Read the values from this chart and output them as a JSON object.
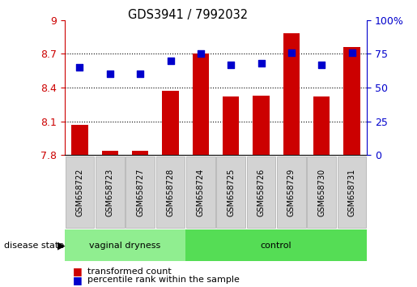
{
  "title": "GDS3941 / 7992032",
  "samples": [
    "GSM658722",
    "GSM658723",
    "GSM658727",
    "GSM658728",
    "GSM658724",
    "GSM658725",
    "GSM658726",
    "GSM658729",
    "GSM658730",
    "GSM658731"
  ],
  "bar_values": [
    8.07,
    7.84,
    7.84,
    8.37,
    8.7,
    8.32,
    8.33,
    8.88,
    8.32,
    8.76
  ],
  "percentile_values": [
    65,
    60,
    60,
    70,
    75,
    67,
    68,
    76,
    67,
    76
  ],
  "ylim_left": [
    7.8,
    9.0
  ],
  "ylim_right": [
    0,
    100
  ],
  "yticks_left": [
    7.8,
    8.1,
    8.4,
    8.7,
    9.0
  ],
  "yticks_right": [
    0,
    25,
    50,
    75,
    100
  ],
  "ytick_labels_left": [
    "7.8",
    "8.1",
    "8.4",
    "8.7",
    "9"
  ],
  "ytick_labels_right": [
    "0",
    "25",
    "50",
    "75",
    "100%"
  ],
  "bar_color": "#CC0000",
  "scatter_color": "#0000CC",
  "bar_bottom": 7.8,
  "group1_label": "vaginal dryness",
  "group2_label": "control",
  "group1_count": 4,
  "group2_count": 6,
  "disease_state_label": "disease state",
  "legend_bar_label": "transformed count",
  "legend_scatter_label": "percentile rank within the sample",
  "group1_color": "#90EE90",
  "group2_color": "#55DD55",
  "tick_label_color_left": "#CC0000",
  "tick_label_color_right": "#0000CC",
  "sample_box_color": "#D3D3D3",
  "sample_box_edge": "#AAAAAA"
}
